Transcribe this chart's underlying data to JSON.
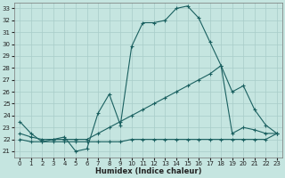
{
  "xlabel": "Humidex (Indice chaleur)",
  "bg_color": "#c5e5e0",
  "line_color": "#1a6060",
  "grid_color": "#a8ccc8",
  "xlim": [
    -0.5,
    23.5
  ],
  "ylim": [
    20.5,
    33.5
  ],
  "xticks": [
    0,
    1,
    2,
    3,
    4,
    5,
    6,
    7,
    8,
    9,
    10,
    11,
    12,
    13,
    14,
    15,
    16,
    17,
    18,
    19,
    20,
    21,
    22,
    23
  ],
  "yticks": [
    21,
    22,
    23,
    24,
    25,
    26,
    27,
    28,
    29,
    30,
    31,
    32,
    33
  ],
  "line1": {
    "x": [
      0,
      1,
      2,
      3,
      4,
      5,
      6,
      7,
      8,
      9,
      10,
      11,
      12,
      13,
      14,
      15,
      16,
      17,
      18,
      19,
      20,
      21,
      22,
      23
    ],
    "y": [
      23.5,
      22.5,
      21.8,
      22.0,
      22.2,
      21.0,
      21.2,
      24.2,
      25.8,
      23.2,
      29.8,
      31.8,
      31.8,
      32.0,
      33.0,
      33.2,
      32.2,
      30.2,
      28.2,
      22.5,
      23.0,
      22.8,
      22.5,
      22.5
    ]
  },
  "line2": {
    "x": [
      0,
      1,
      2,
      3,
      4,
      5,
      6,
      7,
      8,
      9,
      10,
      11,
      12,
      13,
      14,
      15,
      16,
      17,
      18,
      19,
      20,
      21,
      22,
      23
    ],
    "y": [
      22.0,
      21.8,
      21.8,
      21.8,
      21.8,
      21.8,
      21.8,
      21.8,
      21.8,
      21.8,
      22.0,
      22.0,
      22.0,
      22.0,
      22.0,
      22.0,
      22.0,
      22.0,
      22.0,
      22.0,
      22.0,
      22.0,
      22.0,
      22.5
    ]
  },
  "line3": {
    "x": [
      0,
      1,
      2,
      3,
      4,
      5,
      6,
      7,
      8,
      9,
      10,
      11,
      12,
      13,
      14,
      15,
      16,
      17,
      18,
      19,
      20,
      21,
      22,
      23
    ],
    "y": [
      22.5,
      22.2,
      22.0,
      22.0,
      22.0,
      22.0,
      22.0,
      22.5,
      23.0,
      23.5,
      24.0,
      24.5,
      25.0,
      25.5,
      26.0,
      26.5,
      27.0,
      27.5,
      28.2,
      26.0,
      26.5,
      24.5,
      23.2,
      22.5
    ]
  }
}
